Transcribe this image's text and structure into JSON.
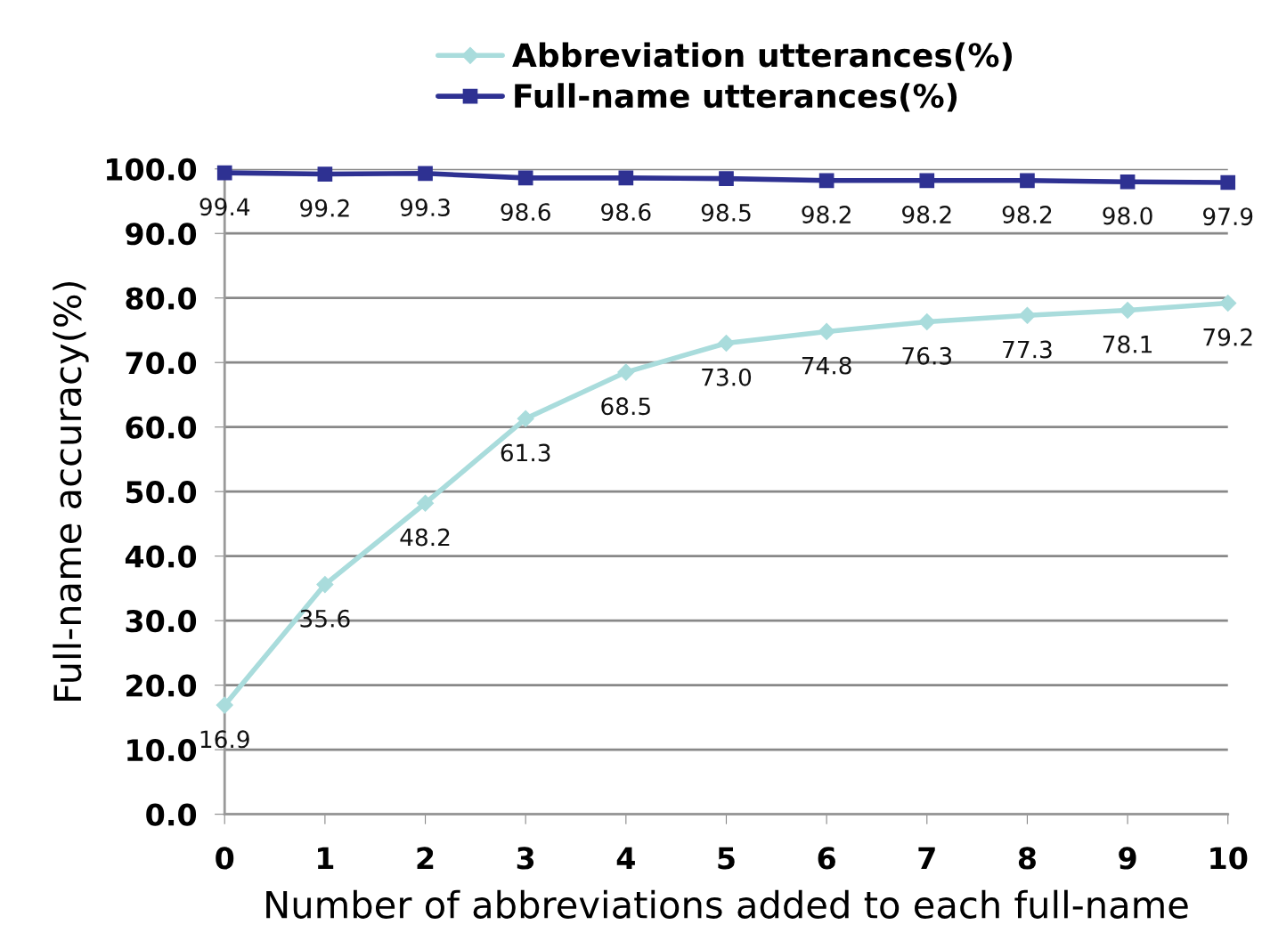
{
  "chart_data": {
    "type": "line",
    "xlabel": "Number of abbreviations added to each full-name",
    "ylabel": "Full-name accuracy(%)",
    "x": [
      0,
      1,
      2,
      3,
      4,
      5,
      6,
      7,
      8,
      9,
      10
    ],
    "series": [
      {
        "name": "Abbreviation utterances(%)",
        "color": "#a9dcdc",
        "marker": "diamond",
        "values": [
          16.9,
          35.6,
          48.2,
          61.3,
          68.5,
          73.0,
          74.8,
          76.3,
          77.3,
          78.1,
          79.2
        ],
        "value_labels": [
          "16.9",
          "35.6",
          "48.2",
          "61.3",
          "68.5",
          "73.0",
          "74.8",
          "76.3",
          "77.3",
          "78.1",
          "79.2"
        ]
      },
      {
        "name": "Full-name utterances(%)",
        "color": "#2e3192",
        "marker": "square",
        "values": [
          99.4,
          99.2,
          99.3,
          98.6,
          98.6,
          98.5,
          98.2,
          98.2,
          98.2,
          98.0,
          97.9
        ],
        "value_labels": [
          "99.4",
          "99.2",
          "99.3",
          "98.6",
          "98.6",
          "98.5",
          "98.2",
          "98.2",
          "98.2",
          "98.0",
          "97.9"
        ]
      }
    ],
    "xlim": [
      0,
      10
    ],
    "xticks": [
      0,
      1,
      2,
      3,
      4,
      5,
      6,
      7,
      8,
      9,
      10
    ],
    "ylim": [
      0,
      100
    ],
    "yticks": [
      {
        "value": 0,
        "label": "0.0"
      },
      {
        "value": 10,
        "label": "10.0"
      },
      {
        "value": 20,
        "label": "20.0"
      },
      {
        "value": 30,
        "label": "30.0"
      },
      {
        "value": 40,
        "label": "40.0"
      },
      {
        "value": 50,
        "label": "50.0"
      },
      {
        "value": 60,
        "label": "60.0"
      },
      {
        "value": 70,
        "label": "70.0"
      },
      {
        "value": 80,
        "label": "80.0"
      },
      {
        "value": 90,
        "label": "90.0"
      },
      {
        "value": 100,
        "label": "100.0"
      }
    ],
    "grid": "y",
    "legend": "top",
    "line_style": "solid"
  }
}
